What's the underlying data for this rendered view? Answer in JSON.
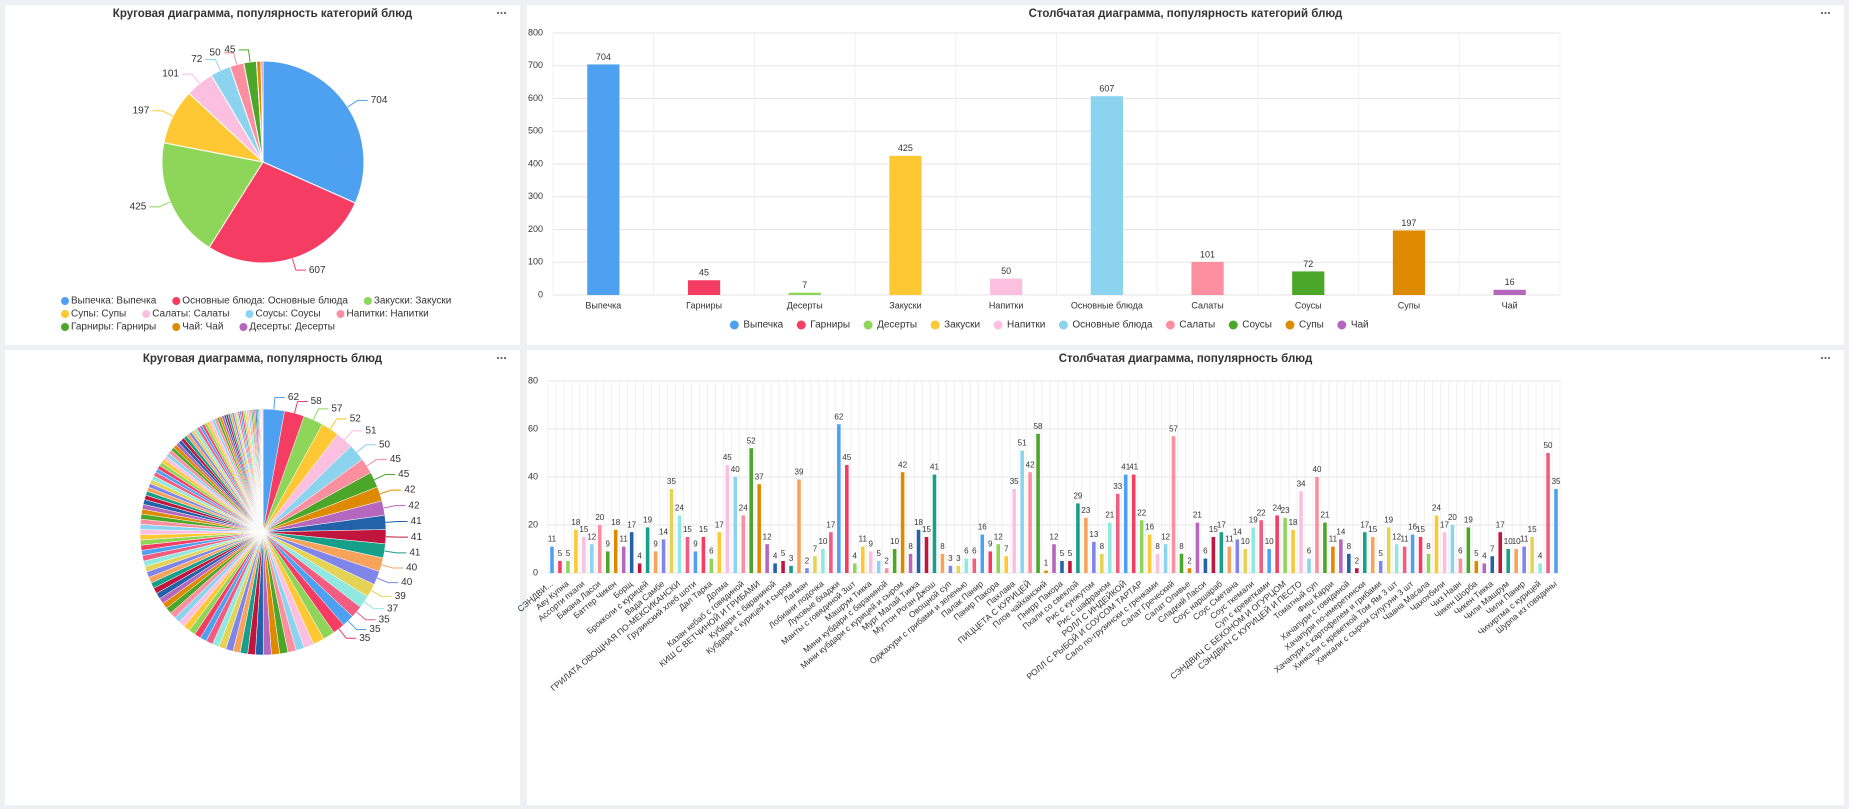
{
  "chart_data": [
    {
      "type": "pie",
      "title": "Круговая диаграмма, популярность категорий блюд",
      "categories": [
        "Выпечка: Выпечка",
        "Основные блюда: Основные блюда",
        "Закуски: Закуски",
        "Супы: Супы",
        "Салаты: Салаты",
        "Соусы: Соусы",
        "Напитки: Напитки",
        "Гарниры: Гарниры",
        "Чай: Чай",
        "Десерты: Десерты"
      ],
      "values": [
        704,
        607,
        425,
        197,
        101,
        72,
        50,
        45,
        16,
        7
      ],
      "colors": [
        "#4ea1f0",
        "#f53c63",
        "#8dd65a",
        "#fdc834",
        "#fbbfe0",
        "#8bd3ef",
        "#fb8f9f",
        "#4ca62a",
        "#dd8a00",
        "#b467bd"
      ],
      "legend": "bottom"
    },
    {
      "type": "bar",
      "title": "Столбчатая диаграмма, популярность категорий блюд",
      "categories": [
        "Выпечка",
        "Гарниры",
        "Десерты",
        "Закуски",
        "Напитки",
        "Основные блюда",
        "Салаты",
        "Соусы",
        "Супы",
        "Чай"
      ],
      "values": [
        704,
        45,
        7,
        425,
        50,
        607,
        101,
        72,
        197,
        16
      ],
      "colors": [
        "#4ea1f0",
        "#f53c63",
        "#8dd65a",
        "#fdc834",
        "#fbbfe0",
        "#8bd3ef",
        "#fb8f9f",
        "#4ca62a",
        "#dd8a00",
        "#b467bd"
      ],
      "ylim": [
        0,
        800
      ],
      "yticks": [
        0,
        100,
        200,
        300,
        400,
        500,
        600,
        700,
        800
      ],
      "grid": true,
      "legend": "bottom"
    },
    {
      "type": "pie",
      "title": "Круговая диаграмма, популярность блюд",
      "values": [
        62,
        58,
        57,
        52,
        51,
        50,
        45,
        45,
        42,
        42,
        41,
        41,
        41,
        40,
        40,
        39,
        37,
        35,
        35,
        35,
        34,
        33,
        29,
        24,
        24,
        24,
        24,
        23,
        23,
        22,
        22,
        21,
        21,
        21,
        20,
        20,
        19,
        19,
        19,
        19,
        18,
        18,
        18,
        18,
        17,
        17,
        17,
        17,
        17,
        17,
        17,
        16,
        16,
        16,
        15,
        15,
        15,
        15,
        15,
        15,
        15,
        15,
        14,
        14,
        14,
        13,
        12,
        12,
        12,
        12,
        12,
        12,
        11,
        11,
        11,
        11,
        11,
        11,
        11,
        10,
        10,
        10,
        10,
        10,
        10,
        9,
        9,
        9,
        9,
        9,
        8,
        8,
        8,
        8,
        8,
        8,
        8,
        7,
        7,
        7,
        6,
        6,
        6,
        6,
        6,
        6,
        5,
        5,
        5,
        5,
        5,
        5,
        5,
        5,
        4,
        4,
        4,
        4,
        4,
        3,
        3,
        3,
        2,
        2,
        2,
        2,
        1
      ],
      "colors": [
        "#4ea1f0",
        "#f53c63",
        "#8dd65a",
        "#fdc834",
        "#fbbfe0",
        "#8bd3ef",
        "#fb8f9f",
        "#4ca62a",
        "#dd8a00",
        "#b467bd",
        "#2162a8",
        "#c0163e",
        "#189f8a",
        "#f7a35c",
        "#8085e9",
        "#e4d354",
        "#91e8e1",
        "#f15c80"
      ]
    },
    {
      "type": "bar",
      "title": "Столбчатая диаграмма, популярность блюд",
      "categories": [
        "СЭНДВИ...",
        null,
        "Аву Купна",
        null,
        "Ассорти пхали",
        null,
        "Бакана Ласси",
        null,
        "Баттер Чикен",
        null,
        "Борщ",
        null,
        "Брокколи с курицей",
        null,
        "Вада Самбе",
        null,
        "ГРИЛАТА ОВОЩНАЯ ПО-МЕКСИКАНСКИ",
        null,
        "Грузинский хлеб шоти",
        null,
        "Дал Тарка",
        null,
        "Долма",
        null,
        "Казан кебаб с говядиной",
        null,
        "КИШ С ВЕТЧИНОЙ И ГРИБАМИ",
        null,
        "Кубдари с бараниной",
        null,
        "Кубдари с курицей и сыром",
        null,
        "Лагман",
        null,
        "Лобиани лодочка",
        null,
        "Луковые бхаджи",
        null,
        "Манты с говядиной 3шт",
        null,
        "Машрум Тикка",
        null,
        "Мини кубдари с бараниной",
        null,
        "Мини кубдари с курицей и сыром",
        null,
        "Мург Малай Тикка",
        null,
        "Муттон Роган Джош",
        null,
        "Овощной суп",
        null,
        "Оджахури с грибами и зеленью",
        null,
        "Палак Панир",
        null,
        "Панир Пакора",
        null,
        "Пахлава",
        null,
        "ПИЦЦЕТА С КУРИЦЕЙ",
        null,
        "Плов чайханский",
        null,
        "Пнирр Пакора",
        null,
        "Пхали со свеклой",
        null,
        "Рис с кунжутом",
        null,
        "Рис с шафраном",
        null,
        "РОЛЛ С ИНДЕЙКОЙ",
        null,
        "РОЛЛ С РЫБОЙ И СОУСОМ ТАРТАР",
        null,
        "Сало по-грузински с гренками",
        null,
        "Салат Греческий",
        null,
        "Салат Оливье",
        null,
        "Сладкий Ласси",
        null,
        "Соус наршараб",
        null,
        "Соус Сметана",
        null,
        "Соус ткемали",
        null,
        "Суп с креветками",
        null,
        "СЭНДВИЧ С БЕКОНОМ И ОГУРЦОМ",
        null,
        "СЭНДВИЧ С КУРИЦЕЙ И ПЕСТО",
        null,
        "Томатный суп",
        null,
        "Фиш Карри",
        null,
        "Хачапури с говядиной",
        null,
        "Хачапури по-имеретински",
        null,
        "Хачапури с картофелем и грибами",
        null,
        "Хинкали с креветкой Том Ям 3 шт",
        null,
        "Хинкали с сыром сулугуни 3 шт",
        null,
        "Чаана Масала",
        null,
        "Чахохбили",
        null,
        "Чиз Наан",
        null,
        "Чикен Шорба",
        null,
        "Чикен Тикка",
        null,
        "Чили Машрум",
        null,
        "Чили Панир",
        null,
        "Чихиртма с курицей",
        null,
        "Шурпа из говядины"
      ],
      "values": [
        11,
        5,
        5,
        18,
        15,
        12,
        20,
        9,
        18,
        11,
        17,
        4,
        19,
        9,
        14,
        35,
        24,
        15,
        9,
        15,
        6,
        17,
        45,
        40,
        24,
        52,
        37,
        12,
        4,
        5,
        3,
        39,
        2,
        7,
        10,
        17,
        62,
        45,
        4,
        11,
        9,
        5,
        2,
        10,
        42,
        8,
        18,
        15,
        41,
        8,
        3,
        3,
        6,
        6,
        16,
        9,
        12,
        7,
        35,
        51,
        42,
        58,
        1,
        12,
        5,
        5,
        29,
        23,
        13,
        8,
        21,
        33,
        41,
        41,
        22,
        16,
        8,
        12,
        57,
        8,
        2,
        21,
        6,
        15,
        17,
        11,
        14,
        10,
        19,
        22,
        10,
        24,
        23,
        18,
        34,
        6,
        40,
        21,
        11,
        14,
        8,
        2,
        17,
        15,
        5,
        19,
        12,
        11,
        16,
        15,
        8,
        24,
        17,
        20,
        6,
        19,
        5,
        4,
        7,
        17,
        10,
        10,
        11,
        15,
        4,
        50,
        35
      ],
      "colors": [
        "#4ea1f0",
        "#f53c63",
        "#8dd65a",
        "#fdc834",
        "#fbbfe0",
        "#8bd3ef",
        "#fb8f9f",
        "#4ca62a",
        "#dd8a00",
        "#b467bd",
        "#2162a8",
        "#c0163e",
        "#189f8a",
        "#f7a35c",
        "#8085e9",
        "#e4d354",
        "#91e8e1",
        "#f15c80"
      ],
      "ylim": [
        0,
        80
      ],
      "yticks": [
        0,
        20,
        40,
        60,
        80
      ],
      "grid": true
    }
  ]
}
